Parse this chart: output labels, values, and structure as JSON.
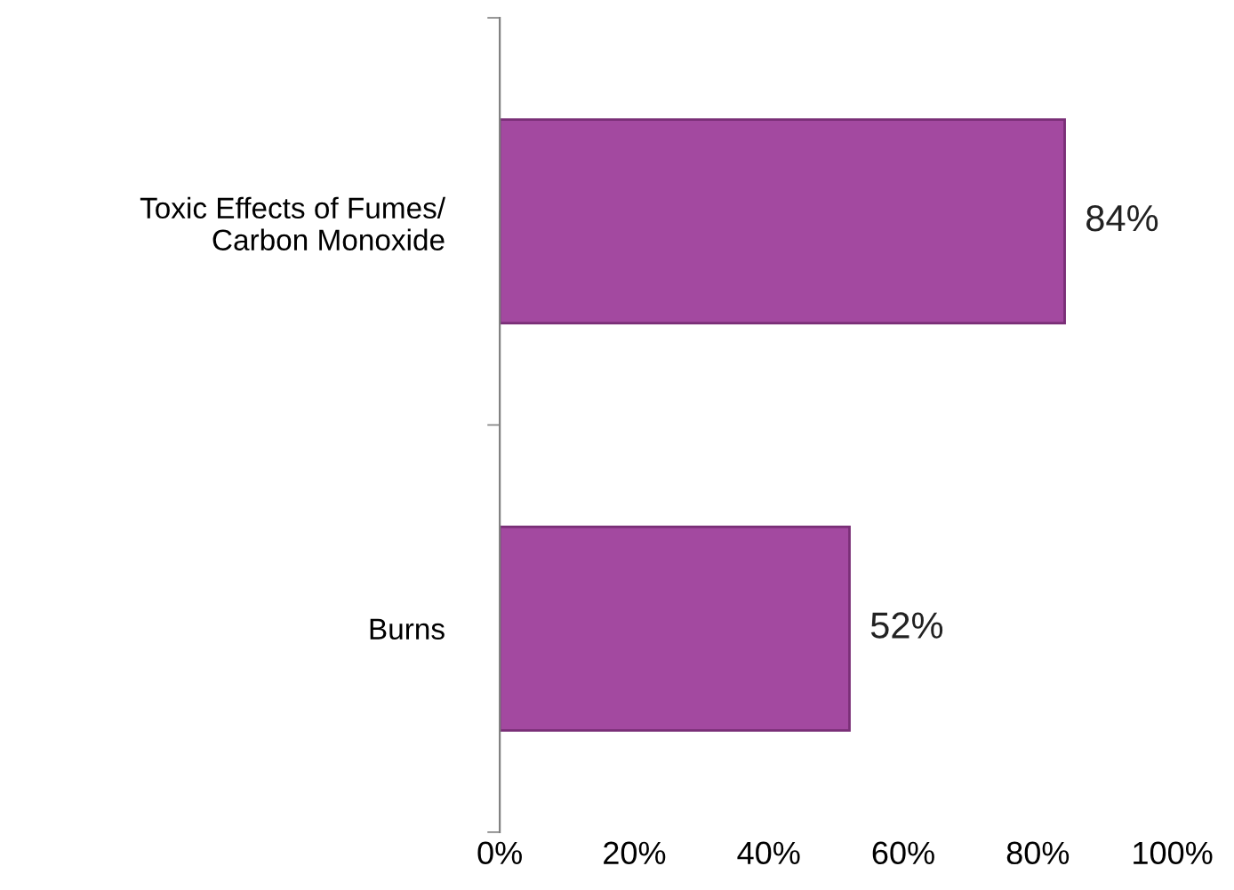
{
  "chart_data": {
    "type": "bar",
    "orientation": "horizontal",
    "categories": [
      "Toxic Effects of Fumes/\nCarbon Monoxide",
      "Burns"
    ],
    "values": [
      84,
      52
    ],
    "color": "#a349a0",
    "value_labels": [
      "84%",
      "52%"
    ],
    "xlim": [
      0,
      100
    ],
    "xticks": [
      {
        "value": 0,
        "label": "0%"
      },
      {
        "value": 20,
        "label": "20%"
      },
      {
        "value": 40,
        "label": "40%"
      },
      {
        "value": 60,
        "label": "60%"
      },
      {
        "value": 80,
        "label": "80%"
      },
      {
        "value": 100,
        "label": "100%"
      }
    ],
    "grid": false
  }
}
